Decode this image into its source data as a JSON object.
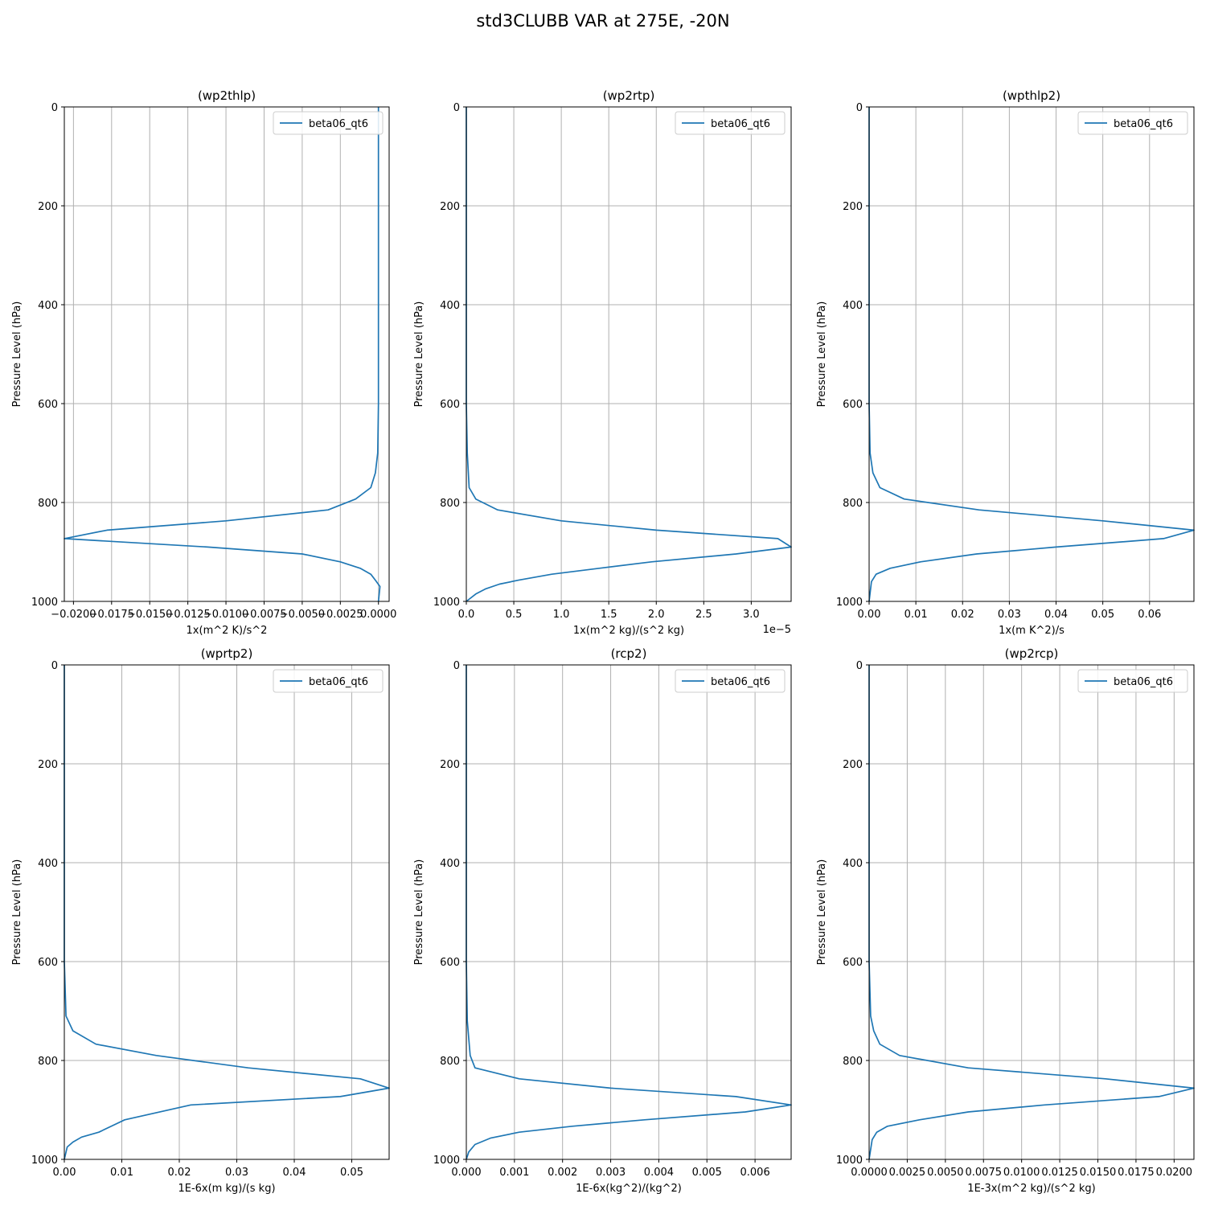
{
  "figure": {
    "title": "std3CLUBB VAR at 275E, -20N"
  },
  "colors": {
    "line": "#1f77b4",
    "grid": "#b0b0b0",
    "axis": "#000000"
  },
  "chart_data": [
    {
      "type": "line",
      "title": "(wp2thlp)",
      "xlabel": "1x(m^2 K)/s^2",
      "ylabel": "Pressure Level (hPa)",
      "offset_text": "",
      "xlim": [
        -0.0206,
        0.0007
      ],
      "ylim": [
        1000,
        0
      ],
      "xticks": [
        -0.02,
        -0.0175,
        -0.015,
        -0.0125,
        -0.01,
        -0.0075,
        -0.005,
        -0.0025,
        0.0
      ],
      "xtick_labels": [
        "−0.0200",
        "−0.0175",
        "−0.0150",
        "−0.0125",
        "−0.0100",
        "−0.0075",
        "−0.0050",
        "−0.0025",
        "0.0000"
      ],
      "yticks": [
        0,
        200,
        400,
        600,
        800,
        1000
      ],
      "grid": true,
      "legend": "top-right",
      "series": [
        {
          "name": "beta06_qt6",
          "x": [
            0.0,
            0.0,
            0.0,
            0.0,
            0.0,
            0.0,
            0.0,
            -5e-05,
            -0.0002,
            -0.0005,
            -0.0015,
            -0.0033,
            -0.01,
            -0.0178,
            -0.0206,
            -0.0112,
            -0.005,
            -0.0025,
            -0.0012,
            -0.0005,
            -0.0002,
            0.0001,
            0.0
          ],
          "y": [
            0,
            100,
            200,
            300,
            400,
            500,
            600,
            700,
            740,
            770,
            793,
            815,
            837,
            856,
            873,
            890,
            904,
            920,
            933,
            945,
            957,
            970,
            1000
          ]
        }
      ]
    },
    {
      "type": "line",
      "title": "(wp2rtp)",
      "xlabel": "1x(m^2 kg)/(s^2 kg)",
      "ylabel": "Pressure Level (hPa)",
      "offset_text": "1e−5",
      "xlim": [
        0,
        3.42
      ],
      "ylim": [
        1000,
        0
      ],
      "xticks": [
        0,
        0.5,
        1.0,
        1.5,
        2.0,
        2.5,
        3.0
      ],
      "xtick_labels": [
        "0.0",
        "0.5",
        "1.0",
        "1.5",
        "2.0",
        "2.5",
        "3.0"
      ],
      "yticks": [
        0,
        200,
        400,
        600,
        800,
        1000
      ],
      "grid": true,
      "legend": "top-right",
      "series": [
        {
          "name": "beta06_qt6",
          "x": [
            0.0,
            0.0,
            0.0,
            0.0,
            0.01,
            0.03,
            0.1,
            0.33,
            1.0,
            2.0,
            3.28,
            3.42,
            2.84,
            1.95,
            1.4,
            0.9,
            0.55,
            0.35,
            0.2,
            0.1,
            0.0
          ],
          "y": [
            0,
            200,
            400,
            600,
            700,
            770,
            793,
            815,
            837,
            856,
            873,
            890,
            904,
            920,
            933,
            945,
            957,
            965,
            975,
            985,
            1000
          ]
        }
      ]
    },
    {
      "type": "line",
      "title": "(wpthlp2)",
      "xlabel": "1x(m K^2)/s",
      "ylabel": "Pressure Level (hPa)",
      "offset_text": "",
      "xlim": [
        0,
        0.0695
      ],
      "ylim": [
        1000,
        0
      ],
      "xticks": [
        0.0,
        0.01,
        0.02,
        0.03,
        0.04,
        0.05,
        0.06
      ],
      "xtick_labels": [
        "0.00",
        "0.01",
        "0.02",
        "0.03",
        "0.04",
        "0.05",
        "0.06"
      ],
      "yticks": [
        0,
        200,
        400,
        600,
        800,
        1000
      ],
      "grid": true,
      "legend": "top-right",
      "series": [
        {
          "name": "beta06_qt6",
          "x": [
            0.0,
            0.0,
            0.0,
            0.0,
            0.0002,
            0.0008,
            0.0023,
            0.0075,
            0.0235,
            0.05,
            0.0695,
            0.063,
            0.04,
            0.023,
            0.011,
            0.0045,
            0.0015,
            0.0005,
            0.0
          ],
          "y": [
            0,
            200,
            400,
            600,
            700,
            740,
            770,
            793,
            815,
            837,
            856,
            873,
            890,
            904,
            920,
            933,
            945,
            960,
            1000
          ]
        }
      ]
    },
    {
      "type": "line",
      "title": "(wprtp2)",
      "xlabel": "1E-6x(m kg)/(s kg)",
      "ylabel": "Pressure Level (hPa)",
      "offset_text": "",
      "xlim": [
        0,
        0.0565
      ],
      "ylim": [
        1000,
        0
      ],
      "xticks": [
        0.0,
        0.01,
        0.02,
        0.03,
        0.04,
        0.05
      ],
      "xtick_labels": [
        "0.00",
        "0.01",
        "0.02",
        "0.03",
        "0.04",
        "0.05"
      ],
      "yticks": [
        0,
        200,
        400,
        600,
        800,
        1000
      ],
      "grid": true,
      "legend": "top-right",
      "series": [
        {
          "name": "beta06_qt6",
          "x": [
            0.0,
            0.0,
            0.0,
            0.0,
            0.0003,
            0.0015,
            0.0055,
            0.016,
            0.032,
            0.0515,
            0.0565,
            0.048,
            0.022,
            0.0105,
            0.006,
            0.003,
            0.0015,
            0.0005,
            0.0
          ],
          "y": [
            0,
            200,
            400,
            600,
            710,
            740,
            767,
            790,
            815,
            837,
            856,
            873,
            890,
            920,
            945,
            955,
            965,
            975,
            1000
          ]
        }
      ]
    },
    {
      "type": "line",
      "title": "(rcp2)",
      "xlabel": "1E-6x(kg^2)/(kg^2)",
      "ylabel": "Pressure Level (hPa)",
      "offset_text": "",
      "xlim": [
        0,
        0.00675
      ],
      "ylim": [
        1000,
        0
      ],
      "xticks": [
        0.0,
        0.001,
        0.002,
        0.003,
        0.004,
        0.005,
        0.006
      ],
      "xtick_labels": [
        "0.000",
        "0.001",
        "0.002",
        "0.003",
        "0.004",
        "0.005",
        "0.006"
      ],
      "yticks": [
        0,
        200,
        400,
        600,
        800,
        1000
      ],
      "grid": true,
      "legend": "top-right",
      "series": [
        {
          "name": "beta06_qt6",
          "x": [
            0.0,
            0.0,
            0.0,
            0.0,
            2e-05,
            8e-05,
            0.00018,
            0.0011,
            0.003,
            0.0056,
            0.00675,
            0.0058,
            0.0037,
            0.0022,
            0.0011,
            0.0005,
            0.00018,
            5e-05,
            0.0
          ],
          "y": [
            0,
            200,
            400,
            600,
            720,
            790,
            815,
            837,
            856,
            873,
            890,
            904,
            920,
            933,
            945,
            957,
            970,
            985,
            1000
          ]
        }
      ]
    },
    {
      "type": "line",
      "title": "(wp2rcp)",
      "xlabel": "1E-3x(m^2 kg)/(s^2 kg)",
      "ylabel": "Pressure Level (hPa)",
      "offset_text": "",
      "xlim": [
        0,
        0.0213
      ],
      "ylim": [
        1000,
        0
      ],
      "xticks": [
        0.0,
        0.0025,
        0.005,
        0.0075,
        0.01,
        0.0125,
        0.015,
        0.0175,
        0.02
      ],
      "xtick_labels": [
        "0.0000",
        "0.0025",
        "0.0050",
        "0.0075",
        "0.0100",
        "0.0125",
        "0.0150",
        "0.0175",
        "0.0200"
      ],
      "yticks": [
        0,
        200,
        400,
        600,
        800,
        1000
      ],
      "grid": true,
      "legend": "top-right",
      "series": [
        {
          "name": "beta06_qt6",
          "x": [
            0.0,
            0.0,
            0.0,
            0.0,
            0.0001,
            0.0003,
            0.0007,
            0.002,
            0.0065,
            0.0155,
            0.0213,
            0.019,
            0.0115,
            0.0065,
            0.0033,
            0.0012,
            0.0005,
            0.0002,
            0.0
          ],
          "y": [
            0,
            200,
            400,
            600,
            710,
            740,
            767,
            790,
            815,
            837,
            856,
            873,
            890,
            904,
            920,
            933,
            945,
            960,
            1000
          ]
        }
      ]
    }
  ]
}
